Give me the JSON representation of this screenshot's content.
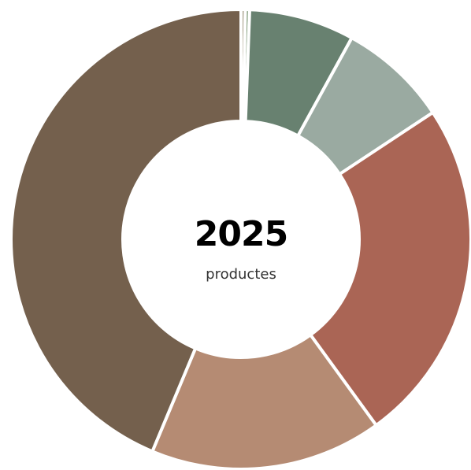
{
  "chart_data": {
    "type": "pie",
    "variant": "donut",
    "center_value": "2025",
    "center_label": "productes",
    "values": [
      0.3,
      0.3,
      7.4,
      7.7,
      24.3,
      16.3,
      43.7
    ],
    "colors": [
      "#a8a08a",
      "#7f9a78",
      "#688170",
      "#9aaaa1",
      "#aa6555",
      "#b58b73",
      "#74604d"
    ],
    "background_color": "#ffffff",
    "separator_color": "#ffffff"
  }
}
